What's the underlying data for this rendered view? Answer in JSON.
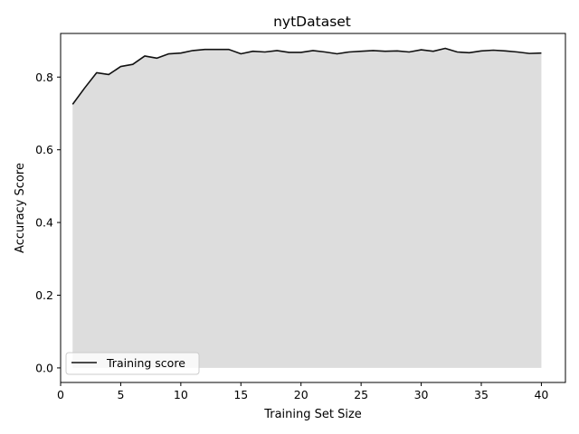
{
  "chart_data": {
    "type": "area",
    "title": "nytDataset",
    "xlabel": "Training Set Size",
    "ylabel": "Accuracy Score",
    "xlim": [
      0.0,
      42.0
    ],
    "ylim": [
      -0.04,
      0.92
    ],
    "xticks": [
      0,
      5,
      10,
      15,
      20,
      25,
      30,
      35,
      40
    ],
    "yticks": [
      0.0,
      0.2,
      0.4,
      0.6,
      0.8
    ],
    "grid": false,
    "legend_position": "lower left",
    "colors": {
      "line": "#111111",
      "fill": "#dddddd"
    },
    "series": [
      {
        "name": "Training score",
        "x": [
          1,
          2,
          3,
          4,
          5,
          6,
          7,
          8,
          9,
          10,
          11,
          12,
          13,
          14,
          15,
          16,
          17,
          18,
          19,
          20,
          21,
          22,
          23,
          24,
          25,
          26,
          27,
          28,
          29,
          30,
          31,
          32,
          33,
          34,
          35,
          36,
          37,
          38,
          39,
          40
        ],
        "values": [
          0.725,
          0.77,
          0.812,
          0.807,
          0.829,
          0.835,
          0.858,
          0.852,
          0.864,
          0.866,
          0.873,
          0.876,
          0.876,
          0.876,
          0.864,
          0.871,
          0.869,
          0.873,
          0.868,
          0.868,
          0.873,
          0.869,
          0.864,
          0.869,
          0.871,
          0.873,
          0.871,
          0.872,
          0.869,
          0.875,
          0.871,
          0.879,
          0.869,
          0.867,
          0.872,
          0.874,
          0.872,
          0.869,
          0.865,
          0.866
        ]
      }
    ]
  }
}
